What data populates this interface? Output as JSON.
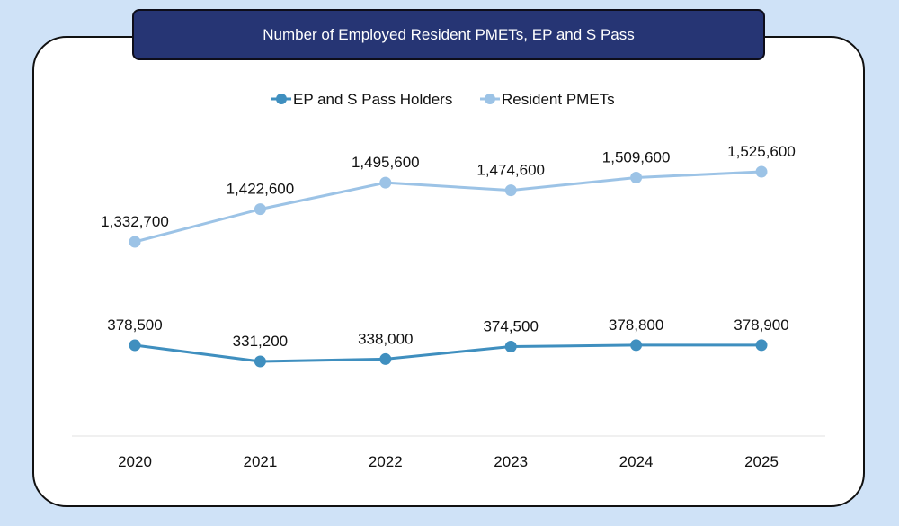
{
  "chart_data": {
    "type": "line",
    "title": "Number of Employed Resident PMETs, EP and S Pass",
    "xlabel": "",
    "ylabel": "",
    "x": [
      "2020",
      "2021",
      "2022",
      "2023",
      "2024",
      "2025"
    ],
    "series": [
      {
        "name": "EP and S Pass Holders",
        "color": "#3f8fbf",
        "values": [
          378500,
          331200,
          338000,
          374500,
          378800,
          378900
        ],
        "labels": [
          "378,500",
          "331,200",
          "338,000",
          "374,500",
          "378,800",
          "378,900"
        ]
      },
      {
        "name": "Resident PMETs",
        "color": "#9cc3e6",
        "values": [
          1332700,
          1422600,
          1495600,
          1474600,
          1509600,
          1525600
        ],
        "labels": [
          "1,332,700",
          "1,422,600",
          "1,495,600",
          "1,474,600",
          "1,509,600",
          "1,525,600"
        ]
      }
    ],
    "legend_position": "top-center",
    "grid": false
  }
}
